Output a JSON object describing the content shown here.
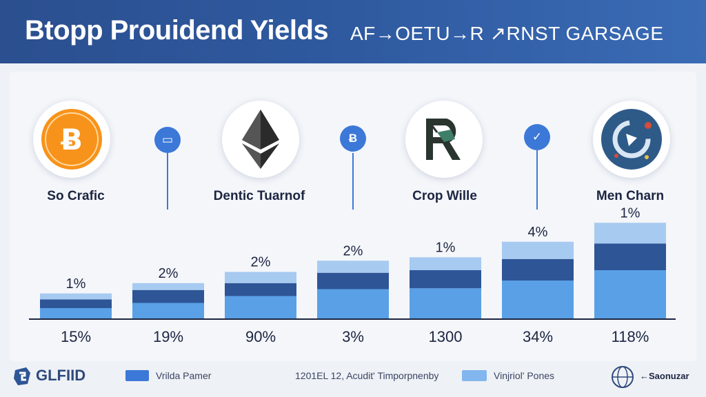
{
  "header": {
    "title": "Btopp Prouidend Yields",
    "subtitle": "AF→OETU→R ↗RNST GARSAGE"
  },
  "coins": [
    {
      "label": "So Crafic",
      "icon": "bitcoin-icon",
      "color": "#f7931a"
    },
    {
      "label": "Dentic Tuarnof",
      "icon": "ethereum-icon",
      "color": "#2b2b2b"
    },
    {
      "label": "Crop Wille",
      "icon": "r-logo-icon",
      "color": "#2d3a30"
    },
    {
      "label": "Men Charn",
      "icon": "globe-logo-icon",
      "color": "#2e5a88"
    }
  ],
  "markers": [
    {
      "glyph": "▭",
      "icon": "card-icon"
    },
    {
      "glyph": "Ƀ",
      "icon": "currency-icon"
    },
    {
      "glyph": "✓",
      "icon": "check-icon"
    }
  ],
  "chart_data": {
    "type": "bar",
    "stacked": true,
    "categories": [
      "",
      "",
      "",
      "",
      "",
      "",
      ""
    ],
    "series": [
      {
        "values": [
          12,
          18,
          26,
          34,
          35,
          44,
          56
        ],
        "color": "#5aa0e6"
      },
      {
        "values": [
          10,
          15,
          15,
          19,
          21,
          25,
          31
        ],
        "color": "#2e5596"
      },
      {
        "values": [
          7,
          8,
          13,
          14,
          15,
          20,
          24
        ],
        "color": "#a7caf0"
      }
    ],
    "top_labels": [
      "1%",
      "2%",
      "2%",
      "2%",
      "1%",
      "4%",
      "1%"
    ],
    "bottom_labels": [
      "15%",
      "19%",
      "90%",
      "3%",
      "1300",
      "34%",
      "118%"
    ],
    "ylim": [
      0,
      120
    ],
    "grid": false
  },
  "footer": {
    "logo_text": "GLFIID",
    "legend1": "Vrilda Pamer",
    "mid_text": "1201EL 12,  Acudit' Timporpnenby",
    "legend2": "Vinjriol' Pones",
    "brand_text": "←Saonuzar",
    "legend1_color": "#3c78d8",
    "legend2_color": "#82b6ee"
  }
}
